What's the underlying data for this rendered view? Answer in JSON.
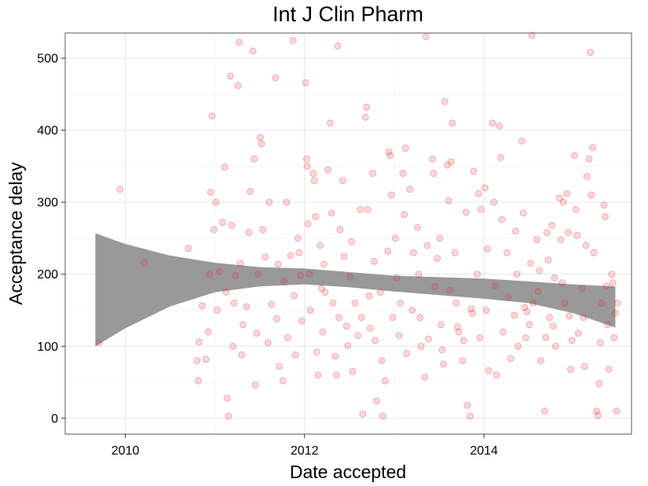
{
  "chart_data": {
    "type": "scatter",
    "title": "Int J Clin Pharm",
    "xlabel": "Date accepted",
    "ylabel": "Acceptance delay",
    "x_is_date": true,
    "xlim": [
      "2009-05-01",
      "2015-08-25"
    ],
    "ylim": [
      -22,
      535
    ],
    "x_ticks": [
      {
        "label": "2010",
        "value": "2010-01-01"
      },
      {
        "label": "2012",
        "value": "2012-01-01"
      },
      {
        "label": "2014",
        "value": "2014-01-01"
      }
    ],
    "y_ticks": [
      0,
      100,
      200,
      300,
      400,
      500
    ],
    "grid": true,
    "point_color": "#e8262a",
    "band_color": "#999999",
    "smooth": {
      "x": [
        "2009-09-01",
        "2010-01-01",
        "2010-07-01",
        "2011-01-01",
        "2011-07-01",
        "2012-01-01",
        "2012-07-01",
        "2013-01-01",
        "2013-07-01",
        "2014-01-01",
        "2014-07-01",
        "2015-01-01",
        "2015-06-20"
      ],
      "lower": [
        100,
        125,
        155,
        175,
        183,
        186,
        182,
        176,
        171,
        166,
        160,
        146,
        126
      ],
      "upper": [
        257,
        242,
        226,
        216,
        210,
        208,
        203,
        198,
        196,
        194,
        190,
        186,
        183
      ]
    },
    "points": [
      [
        "2009-09-15",
        105
      ],
      [
        "2009-12-10",
        318
      ],
      [
        "2010-03-20",
        216
      ],
      [
        "2010-09-15",
        236
      ],
      [
        "2010-10-20",
        80
      ],
      [
        "2010-10-25",
        52
      ],
      [
        "2010-10-28",
        106
      ],
      [
        "2010-11-10",
        156
      ],
      [
        "2010-11-25",
        82
      ],
      [
        "2010-12-05",
        120
      ],
      [
        "2010-12-10",
        200
      ],
      [
        "2010-12-15",
        314
      ],
      [
        "2010-12-20",
        420
      ],
      [
        "2010-12-28",
        262
      ],
      [
        "2011-01-05",
        300
      ],
      [
        "2011-01-10",
        150
      ],
      [
        "2011-01-20",
        204
      ],
      [
        "2011-02-01",
        272
      ],
      [
        "2011-02-10",
        349
      ],
      [
        "2011-02-15",
        175
      ],
      [
        "2011-02-20",
        28
      ],
      [
        "2011-02-25",
        3
      ],
      [
        "2011-03-05",
        475
      ],
      [
        "2011-03-10",
        268
      ],
      [
        "2011-03-15",
        100
      ],
      [
        "2011-03-20",
        160
      ],
      [
        "2011-03-25",
        198
      ],
      [
        "2011-04-05",
        462
      ],
      [
        "2011-04-10",
        522
      ],
      [
        "2011-04-15",
        215
      ],
      [
        "2011-04-20",
        88
      ],
      [
        "2011-04-25",
        130
      ],
      [
        "2011-05-10",
        155
      ],
      [
        "2011-05-20",
        258
      ],
      [
        "2011-05-25",
        315
      ],
      [
        "2011-06-05",
        510
      ],
      [
        "2011-06-10",
        360
      ],
      [
        "2011-06-15",
        46
      ],
      [
        "2011-06-20",
        118
      ],
      [
        "2011-06-25",
        200
      ],
      [
        "2011-07-05",
        390
      ],
      [
        "2011-07-10",
        381
      ],
      [
        "2011-07-15",
        262
      ],
      [
        "2011-07-25",
        224
      ],
      [
        "2011-08-05",
        105
      ],
      [
        "2011-08-10",
        300
      ],
      [
        "2011-08-20",
        158
      ],
      [
        "2011-09-05",
        473
      ],
      [
        "2011-09-10",
        138
      ],
      [
        "2011-09-15",
        214
      ],
      [
        "2011-09-20",
        72
      ],
      [
        "2011-10-05",
        52
      ],
      [
        "2011-10-10",
        190
      ],
      [
        "2011-10-20",
        300
      ],
      [
        "2011-10-25",
        112
      ],
      [
        "2011-11-05",
        226
      ],
      [
        "2011-11-15",
        525
      ],
      [
        "2011-11-20",
        170
      ],
      [
        "2011-11-25",
        88
      ],
      [
        "2011-12-05",
        250
      ],
      [
        "2011-12-10",
        230
      ],
      [
        "2011-12-15",
        198
      ],
      [
        "2011-12-20",
        135
      ],
      [
        "2012-01-05",
        466
      ],
      [
        "2012-01-10",
        360
      ],
      [
        "2012-01-12",
        350
      ],
      [
        "2012-01-15",
        270
      ],
      [
        "2012-01-20",
        200
      ],
      [
        "2012-01-25",
        150
      ],
      [
        "2012-02-05",
        340
      ],
      [
        "2012-02-10",
        330
      ],
      [
        "2012-02-15",
        280
      ],
      [
        "2012-02-20",
        92
      ],
      [
        "2012-02-25",
        60
      ],
      [
        "2012-03-05",
        240
      ],
      [
        "2012-03-10",
        180
      ],
      [
        "2012-03-15",
        120
      ],
      [
        "2012-03-20",
        214
      ],
      [
        "2012-03-25",
        175
      ],
      [
        "2012-04-05",
        345
      ],
      [
        "2012-04-15",
        410
      ],
      [
        "2012-04-20",
        285
      ],
      [
        "2012-04-25",
        160
      ],
      [
        "2012-05-05",
        86
      ],
      [
        "2012-05-10",
        60
      ],
      [
        "2012-05-15",
        517
      ],
      [
        "2012-05-20",
        140
      ],
      [
        "2012-05-25",
        262
      ],
      [
        "2012-06-05",
        330
      ],
      [
        "2012-06-10",
        225
      ],
      [
        "2012-06-20",
        128
      ],
      [
        "2012-06-25",
        101
      ],
      [
        "2012-07-05",
        196
      ],
      [
        "2012-07-10",
        245
      ],
      [
        "2012-07-15",
        65
      ],
      [
        "2012-07-25",
        160
      ],
      [
        "2012-08-05",
        115
      ],
      [
        "2012-08-15",
        290
      ],
      [
        "2012-08-20",
        140
      ],
      [
        "2012-08-25",
        6
      ],
      [
        "2012-09-05",
        418
      ],
      [
        "2012-09-10",
        432
      ],
      [
        "2012-09-15",
        290
      ],
      [
        "2012-09-20",
        170
      ],
      [
        "2012-09-25",
        125
      ],
      [
        "2012-10-05",
        340
      ],
      [
        "2012-10-10",
        218
      ],
      [
        "2012-10-15",
        108
      ],
      [
        "2012-10-20",
        24
      ],
      [
        "2012-11-05",
        175
      ],
      [
        "2012-11-10",
        80
      ],
      [
        "2012-11-15",
        3
      ],
      [
        "2012-11-25",
        52
      ],
      [
        "2012-12-05",
        232
      ],
      [
        "2012-12-10",
        370
      ],
      [
        "2012-12-15",
        365
      ],
      [
        "2012-12-20",
        310
      ],
      [
        "2012-12-25",
        140
      ],
      [
        "2013-01-05",
        250
      ],
      [
        "2013-01-10",
        195
      ],
      [
        "2013-01-20",
        115
      ],
      [
        "2013-01-25",
        160
      ],
      [
        "2013-02-05",
        340
      ],
      [
        "2013-02-10",
        283
      ],
      [
        "2013-02-15",
        375
      ],
      [
        "2013-02-20",
        90
      ],
      [
        "2013-03-05",
        318
      ],
      [
        "2013-03-15",
        150
      ],
      [
        "2013-03-20",
        230
      ],
      [
        "2013-04-05",
        265
      ],
      [
        "2013-04-10",
        200
      ],
      [
        "2013-04-15",
        140
      ],
      [
        "2013-04-20",
        100
      ],
      [
        "2013-05-05",
        57
      ],
      [
        "2013-05-10",
        530
      ],
      [
        "2013-05-15",
        240
      ],
      [
        "2013-05-20",
        110
      ],
      [
        "2013-06-05",
        360
      ],
      [
        "2013-06-10",
        340
      ],
      [
        "2013-06-15",
        183
      ],
      [
        "2013-06-25",
        222
      ],
      [
        "2013-07-05",
        250
      ],
      [
        "2013-07-10",
        130
      ],
      [
        "2013-07-15",
        95
      ],
      [
        "2013-07-20",
        75
      ],
      [
        "2013-07-25",
        440
      ],
      [
        "2013-08-05",
        352
      ],
      [
        "2013-08-10",
        302
      ],
      [
        "2013-08-15",
        178
      ],
      [
        "2013-08-20",
        356
      ],
      [
        "2013-08-25",
        410
      ],
      [
        "2013-09-05",
        230
      ],
      [
        "2013-09-10",
        160
      ],
      [
        "2013-09-15",
        127
      ],
      [
        "2013-09-20",
        120
      ],
      [
        "2013-10-05",
        80
      ],
      [
        "2013-10-10",
        108
      ],
      [
        "2013-10-20",
        286
      ],
      [
        "2013-10-25",
        18
      ],
      [
        "2013-11-05",
        3
      ],
      [
        "2013-11-10",
        152
      ],
      [
        "2013-11-15",
        146
      ],
      [
        "2013-11-20",
        343
      ],
      [
        "2013-12-05",
        200
      ],
      [
        "2013-12-10",
        312
      ],
      [
        "2013-12-15",
        112
      ],
      [
        "2013-12-20",
        290
      ],
      [
        "2014-01-05",
        320
      ],
      [
        "2014-01-10",
        150
      ],
      [
        "2014-01-15",
        235
      ],
      [
        "2014-01-20",
        66
      ],
      [
        "2014-02-05",
        410
      ],
      [
        "2014-02-10",
        300
      ],
      [
        "2014-02-15",
        184
      ],
      [
        "2014-02-20",
        60
      ],
      [
        "2014-03-05",
        406
      ],
      [
        "2014-03-10",
        362
      ],
      [
        "2014-03-15",
        276
      ],
      [
        "2014-03-20",
        120
      ],
      [
        "2014-04-05",
        230
      ],
      [
        "2014-04-10",
        168
      ],
      [
        "2014-04-20",
        83
      ],
      [
        "2014-05-05",
        143
      ],
      [
        "2014-05-10",
        260
      ],
      [
        "2014-05-15",
        200
      ],
      [
        "2014-05-20",
        100
      ],
      [
        "2014-06-05",
        385
      ],
      [
        "2014-06-10",
        285
      ],
      [
        "2014-06-15",
        154
      ],
      [
        "2014-06-20",
        112
      ],
      [
        "2014-06-25",
        148
      ],
      [
        "2014-07-05",
        130
      ],
      [
        "2014-07-10",
        215
      ],
      [
        "2014-07-15",
        532
      ],
      [
        "2014-07-20",
        160
      ],
      [
        "2014-08-05",
        248
      ],
      [
        "2014-08-10",
        176
      ],
      [
        "2014-08-15",
        205
      ],
      [
        "2014-08-20",
        80
      ],
      [
        "2014-09-05",
        10
      ],
      [
        "2014-09-10",
        112
      ],
      [
        "2014-09-15",
        258
      ],
      [
        "2014-09-20",
        220
      ],
      [
        "2014-09-25",
        140
      ],
      [
        "2014-10-05",
        268
      ],
      [
        "2014-10-10",
        128
      ],
      [
        "2014-10-15",
        195
      ],
      [
        "2014-10-20",
        100
      ],
      [
        "2014-11-05",
        306
      ],
      [
        "2014-11-10",
        248
      ],
      [
        "2014-11-15",
        188
      ],
      [
        "2014-11-20",
        300
      ],
      [
        "2014-11-25",
        160
      ],
      [
        "2014-12-05",
        312
      ],
      [
        "2014-12-10",
        258
      ],
      [
        "2014-12-15",
        142
      ],
      [
        "2014-12-20",
        68
      ],
      [
        "2014-12-25",
        108
      ],
      [
        "2015-01-05",
        365
      ],
      [
        "2015-01-10",
        290
      ],
      [
        "2015-01-15",
        254
      ],
      [
        "2015-01-20",
        118
      ],
      [
        "2015-02-05",
        180
      ],
      [
        "2015-02-10",
        140
      ],
      [
        "2015-02-15",
        72
      ],
      [
        "2015-02-20",
        240
      ],
      [
        "2015-02-25",
        336
      ],
      [
        "2015-03-05",
        360
      ],
      [
        "2015-03-10",
        508
      ],
      [
        "2015-03-15",
        310
      ],
      [
        "2015-03-20",
        376
      ],
      [
        "2015-03-25",
        230
      ],
      [
        "2015-04-05",
        10
      ],
      [
        "2015-04-10",
        4
      ],
      [
        "2015-04-15",
        48
      ],
      [
        "2015-04-20",
        105
      ],
      [
        "2015-04-25",
        160
      ],
      [
        "2015-05-05",
        296
      ],
      [
        "2015-05-10",
        280
      ],
      [
        "2015-05-15",
        184
      ],
      [
        "2015-05-20",
        130
      ],
      [
        "2015-05-25",
        68
      ],
      [
        "2015-06-05",
        200
      ],
      [
        "2015-06-10",
        188
      ],
      [
        "2015-06-15",
        112
      ],
      [
        "2015-06-20",
        146
      ],
      [
        "2015-06-25",
        10
      ],
      [
        "2015-06-28",
        160
      ]
    ]
  }
}
